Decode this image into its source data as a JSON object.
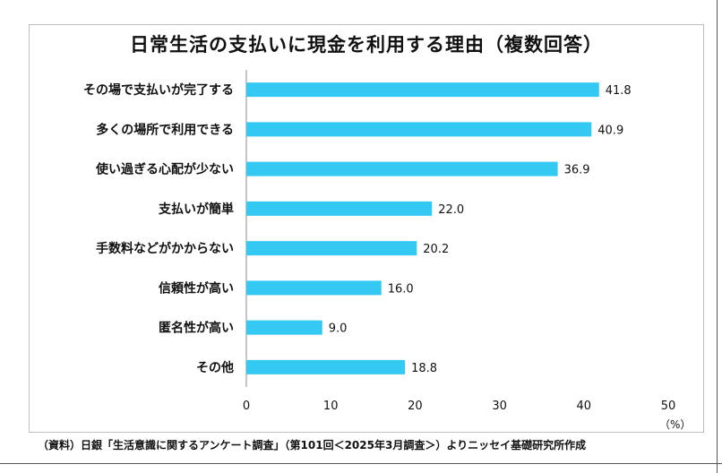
{
  "chart_data": {
    "type": "bar",
    "orientation": "horizontal",
    "title": "日常生活の支払いに現金を利用する理由（複数回答）",
    "categories": [
      "その場で支払いが完了する",
      "多くの場所で利用できる",
      "使い過ぎる心配が少ない",
      "支払いが簡単",
      "手数料などがかからない",
      "信頼性が高い",
      "匿名性が高い",
      "その他"
    ],
    "values": [
      41.8,
      40.9,
      36.9,
      22.0,
      20.2,
      16.0,
      9.0,
      18.8
    ],
    "value_labels": [
      "41.8",
      "40.9",
      "36.9",
      "22.0",
      "20.2",
      "16.0",
      "9.0",
      "18.8"
    ],
    "xlim": [
      0,
      50
    ],
    "x_ticks": [
      "0",
      "10",
      "20",
      "30",
      "40",
      "50"
    ],
    "unit": "（%）",
    "grid": false,
    "bar_color": "#33c9f2"
  },
  "source_note": "（資料）日銀「生活意識に関するアンケート調査」（第101回＜2025年3月調査＞）よりニッセイ基礎研究所作成"
}
